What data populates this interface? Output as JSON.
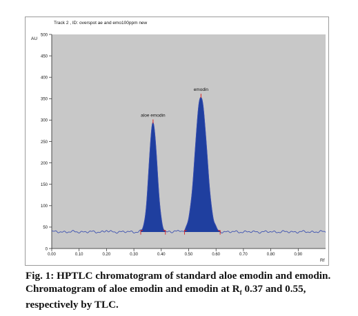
{
  "chart_data": {
    "type": "line",
    "title": "Track  2 , ID: overspot ae and emo100ppm new",
    "ylabel": "AU",
    "xlabel": "Rf",
    "xlim": [
      0.0,
      1.0
    ],
    "ylim": [
      0,
      500
    ],
    "xticks": [
      "0.00",
      "0.10",
      "0.20",
      "0.30",
      "0.40",
      "0.50",
      "0.60",
      "0.70",
      "0.80",
      "0.90"
    ],
    "yticks": [
      "0",
      "50",
      "100",
      "150",
      "200",
      "250",
      "300",
      "350",
      "400",
      "450",
      "500"
    ],
    "background_color": "#c8c8c8",
    "fill_color": "#1f3f9f",
    "line_color": "#3a4fb0",
    "marker_color": "#dd2222",
    "baseline": 39,
    "peaks": [
      {
        "label": "aloe emodin",
        "rf": 0.37,
        "height": 295,
        "start": 0.325,
        "end": 0.415
      },
      {
        "label": "emodin",
        "rf": 0.545,
        "height": 355,
        "start": 0.485,
        "end": 0.615
      }
    ]
  },
  "caption": {
    "line1": "Fig. 1: HPTLC chromatogram of standard aloe emodin and emodin.",
    "line2_pre": "Chromatogram of aloe emodin and emodin at R",
    "line2_sub": "f",
    "line2_post": " 0.37 and 0.55,",
    "line3": "respectively by TLC."
  }
}
